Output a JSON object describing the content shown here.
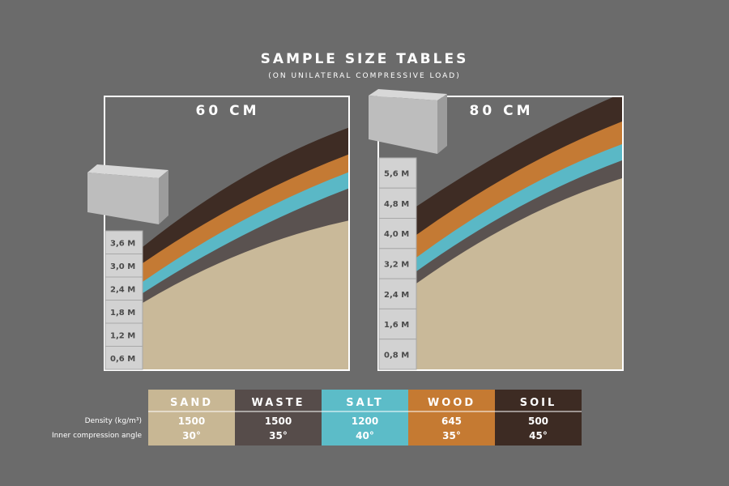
{
  "header": {
    "title": "SAMPLE SIZE TABLES",
    "subtitle": "(ON UNILATERAL COMPRESSIVE LOAD)"
  },
  "panels": [
    {
      "title": "60 CM",
      "levels": [
        "3,6 M",
        "3,0 M",
        "2,4 M",
        "1,8 M",
        "1,2 M",
        "0,6 M"
      ]
    },
    {
      "title": "80 CM",
      "levels": [
        "5,6 M",
        "4,8 M",
        "4,0 M",
        "3,2 M",
        "2,4 M",
        "1,6 M",
        "0,8 M"
      ]
    }
  ],
  "table": {
    "columns": [
      "SAND",
      "WASTE",
      "SALT",
      "WOOD",
      "SOIL"
    ],
    "row_labels": [
      "Density (kg/m³)",
      "Inner compression angle"
    ],
    "rows": [
      [
        "1500",
        "1500",
        "1200",
        "645",
        "500"
      ],
      [
        "30°",
        "35°",
        "40°",
        "35°",
        "45°"
      ]
    ]
  }
}
